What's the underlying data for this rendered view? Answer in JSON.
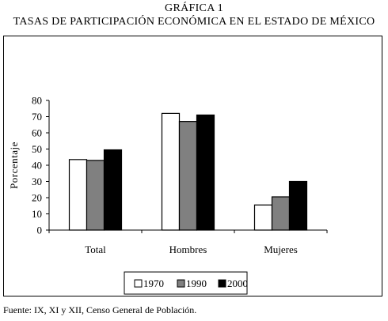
{
  "header": {
    "line1": "GRÁFICA 1",
    "line2": "TASAS DE PARTICIPACIÓN ECONÓMICA EN EL ESTADO DE MÉXICO"
  },
  "footer": {
    "source": "Fuente: IX, XI y XII, Censo General de Población."
  },
  "chart_data": {
    "type": "bar",
    "title": "TASAS DE PARTICIPACIÓN ECONÓMICA EN EL ESTADO DE MÉXICO",
    "xlabel": "",
    "ylabel": "Porcentaje",
    "ylim": [
      0,
      80
    ],
    "yticks": [
      0,
      10,
      20,
      30,
      40,
      50,
      60,
      70,
      80
    ],
    "grid": false,
    "legend_position": "bottom-center",
    "categories": [
      "Total",
      "Hombres",
      "Mujeres"
    ],
    "series": [
      {
        "name": "1970",
        "values": [
          43.5,
          72,
          15.5
        ],
        "color": "#ffffff"
      },
      {
        "name": "1990",
        "values": [
          43,
          67,
          20.5
        ],
        "color": "#808080"
      },
      {
        "name": "2000",
        "values": [
          49.5,
          71,
          30
        ],
        "color": "#000000"
      }
    ]
  }
}
